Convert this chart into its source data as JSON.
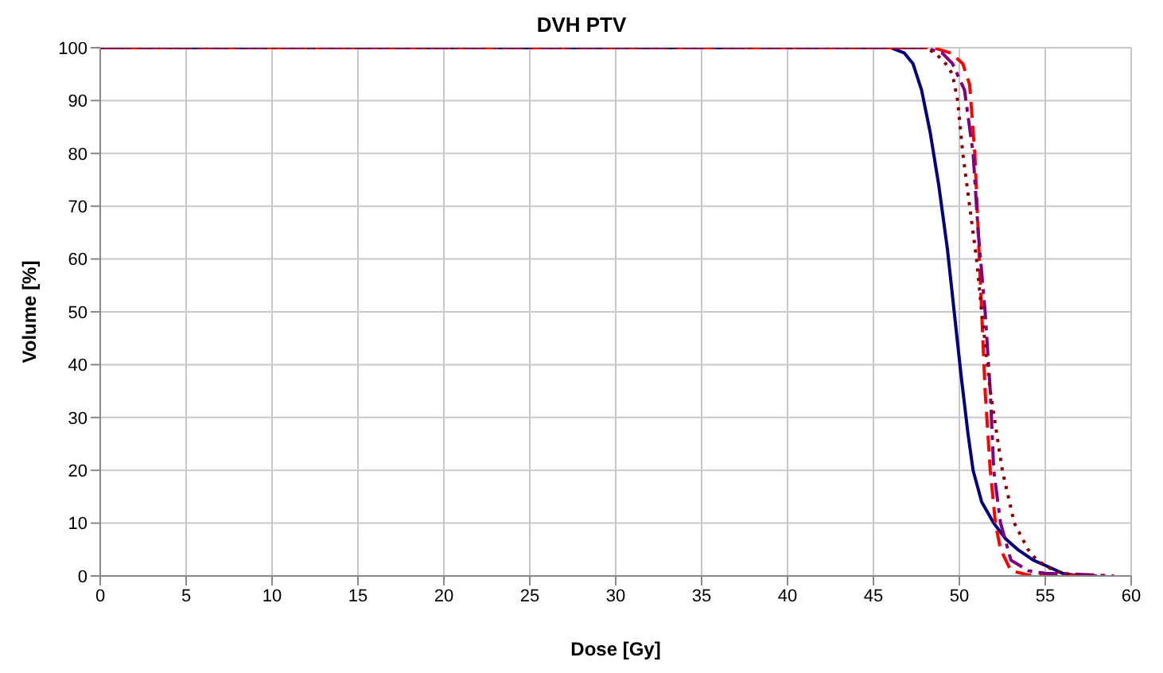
{
  "chart_data": {
    "type": "line",
    "title": "DVH PTV",
    "xlabel": "Dose [Gy]",
    "ylabel": "Volume [%]",
    "xlim": [
      0,
      60
    ],
    "xticks": [
      0,
      5,
      10,
      15,
      20,
      25,
      30,
      35,
      40,
      45,
      50,
      55,
      60
    ],
    "ylim": [
      0,
      100
    ],
    "yticks": [
      0,
      10,
      20,
      30,
      40,
      50,
      60,
      70,
      80,
      90,
      100
    ],
    "grid": true,
    "legend": false,
    "marker": "none",
    "series": [
      {
        "color": "#000080",
        "line_style": "solid",
        "x": [
          0,
          46,
          46.8,
          47.3,
          47.8,
          48.3,
          48.8,
          49.3,
          49.7,
          50.1,
          50.5,
          50.8,
          51.3,
          52,
          52.7,
          53.4,
          54.3,
          55,
          56,
          57
        ],
        "values": [
          100,
          100,
          99,
          97,
          92,
          84,
          74,
          62,
          50,
          38,
          27,
          20,
          14,
          10,
          7,
          5,
          3,
          2,
          0.5,
          0
        ]
      },
      {
        "color": "#ff0000",
        "line_style": "dashed",
        "x": [
          0,
          48.5,
          49.5,
          50.2,
          50.6,
          50.9,
          51.1,
          51.3,
          51.5,
          51.8,
          52.1,
          52.4,
          53,
          54,
          58
        ],
        "values": [
          100,
          100,
          99,
          97,
          93,
          80,
          65,
          50,
          35,
          20,
          10,
          5,
          1,
          0.2,
          0
        ]
      },
      {
        "color": "#800080",
        "line_style": "dashdot",
        "x": [
          0,
          48,
          49,
          49.6,
          50.3,
          50.8,
          51.1,
          51.5,
          51.8,
          52,
          52.4,
          53,
          54,
          55,
          57,
          59
        ],
        "values": [
          100,
          100,
          99,
          97,
          92,
          80,
          65,
          50,
          35,
          20,
          10,
          3,
          1,
          0.5,
          0.3,
          0
        ]
      },
      {
        "color": "#8b0000",
        "line_style": "dotted",
        "x": [
          0,
          48,
          48.6,
          49.2,
          49.6,
          49.9,
          50.2,
          50.6,
          51,
          51.3,
          51.8,
          52.5,
          53.2,
          54,
          54.5,
          55.5,
          56.5,
          58
        ],
        "values": [
          100,
          100,
          99,
          97,
          95,
          90,
          80,
          70,
          60,
          50,
          35,
          20,
          10,
          5,
          3,
          1,
          0.2,
          0
        ]
      }
    ]
  }
}
